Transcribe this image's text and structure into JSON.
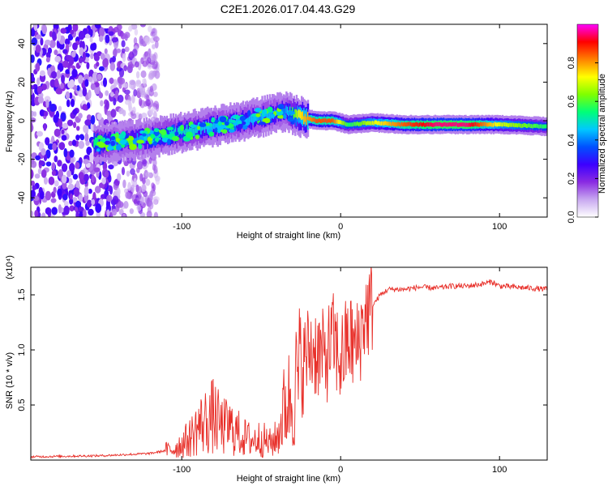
{
  "title": "C2E1.2026.017.04.43.G29",
  "colors": {
    "snr_line": "#e8302a",
    "axis": "#000000",
    "background": "#ffffff"
  },
  "chart_data": [
    {
      "type": "heatmap",
      "title": "C2E1.2026.017.04.43.G29",
      "xlabel": "Height of straight line (km)",
      "ylabel": "Frequency (Hz)",
      "xlim": [
        -195,
        130
      ],
      "ylim": [
        -50,
        50
      ],
      "xticks": [
        -100,
        0,
        100
      ],
      "xtick_labels": [
        "-100",
        "0",
        "100"
      ],
      "yticks": [
        -40,
        -20,
        0,
        20,
        40
      ],
      "ytick_labels": [
        "-40",
        "-20",
        "0",
        "20",
        "40"
      ],
      "colorbar": {
        "label": "Normalized spectral amplitude",
        "range": [
          0,
          1
        ],
        "ticks": [
          0.0,
          0.2,
          0.4,
          0.6,
          0.8
        ],
        "tick_labels": [
          "0.0",
          "0.2",
          "0.4",
          "0.6",
          "0.8"
        ],
        "colormap": [
          "#ffffff",
          "#c8a8f0",
          "#8a2be2",
          "#3c00ff",
          "#0050ff",
          "#00c8ff",
          "#00ff78",
          "#80ff00",
          "#ffff00",
          "#ff8000",
          "#ff0000",
          "#ff00ff"
        ]
      },
      "ridge": {
        "x": [
          -155,
          -140,
          -120,
          -100,
          -80,
          -60,
          -45,
          -35,
          -25,
          -15,
          -5,
          5,
          20,
          40,
          60,
          80,
          100,
          130
        ],
        "frequency": [
          -12,
          -11,
          -9,
          -6,
          -3,
          0,
          3,
          5,
          2,
          0,
          0,
          -2,
          -1,
          -2,
          -2,
          -2,
          -2,
          -3
        ],
        "amplitude": [
          0.55,
          0.4,
          0.45,
          0.5,
          0.45,
          0.45,
          0.45,
          0.4,
          0.75,
          0.85,
          0.85,
          0.55,
          0.7,
          0.85,
          0.95,
          0.95,
          0.7,
          0.55
        ]
      },
      "noise_region": {
        "x_range": [
          -195,
          -115
        ],
        "amplitude_range": [
          0.05,
          0.3
        ]
      }
    },
    {
      "type": "line",
      "xlabel": "Height of straight line (km)",
      "ylabel": "SNR (10 * v/v)",
      "y_multiplier_label": "(x10⁴)",
      "xlim": [
        -195,
        130
      ],
      "ylim": [
        0,
        1.75
      ],
      "xticks": [
        -100,
        0,
        100
      ],
      "xtick_labels": [
        "-100",
        "0",
        "100"
      ],
      "yticks": [
        0.5,
        1.0,
        1.5
      ],
      "ytick_labels": [
        "0.5",
        "1.0",
        "1.5"
      ],
      "series": [
        {
          "name": "SNR",
          "x": [
            -195,
            -150,
            -120,
            -105,
            -95,
            -90,
            -85,
            -80,
            -75,
            -70,
            -65,
            -60,
            -55,
            -50,
            -45,
            -40,
            -35,
            -30,
            -25,
            -20,
            -15,
            -10,
            -5,
            0,
            5,
            10,
            15,
            20,
            25,
            30,
            40,
            50,
            60,
            70,
            80,
            90,
            95,
            100,
            110,
            120,
            130
          ],
          "y": [
            0.03,
            0.04,
            0.06,
            0.1,
            0.2,
            0.3,
            0.35,
            0.4,
            0.3,
            0.3,
            0.25,
            0.2,
            0.18,
            0.2,
            0.15,
            0.2,
            0.5,
            0.6,
            0.8,
            1.0,
            1.0,
            0.9,
            1.1,
            0.9,
            1.1,
            1.0,
            1.3,
            1.4,
            1.5,
            1.55,
            1.55,
            1.57,
            1.56,
            1.58,
            1.58,
            1.6,
            1.62,
            1.58,
            1.57,
            1.56,
            1.55
          ]
        }
      ]
    }
  ]
}
